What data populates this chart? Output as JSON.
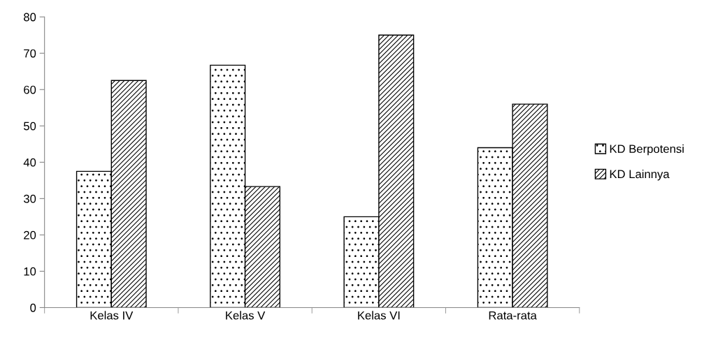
{
  "chart_data": {
    "type": "bar",
    "categories": [
      "Kelas IV",
      "Kelas V",
      "Kelas VI",
      "Rata-rata"
    ],
    "series": [
      {
        "name": "KD Berpotensi",
        "color": "#000000",
        "values": [
          37.5,
          66.7,
          25,
          44
        ]
      },
      {
        "name": "KD Lainnya",
        "color": "#000000",
        "values": [
          62.5,
          33.3,
          75,
          56
        ]
      }
    ],
    "ylim": [
      0,
      80
    ],
    "yticks": [
      0,
      10,
      20,
      30,
      40,
      50,
      60,
      70,
      80
    ],
    "grid": false,
    "legend": "right"
  }
}
